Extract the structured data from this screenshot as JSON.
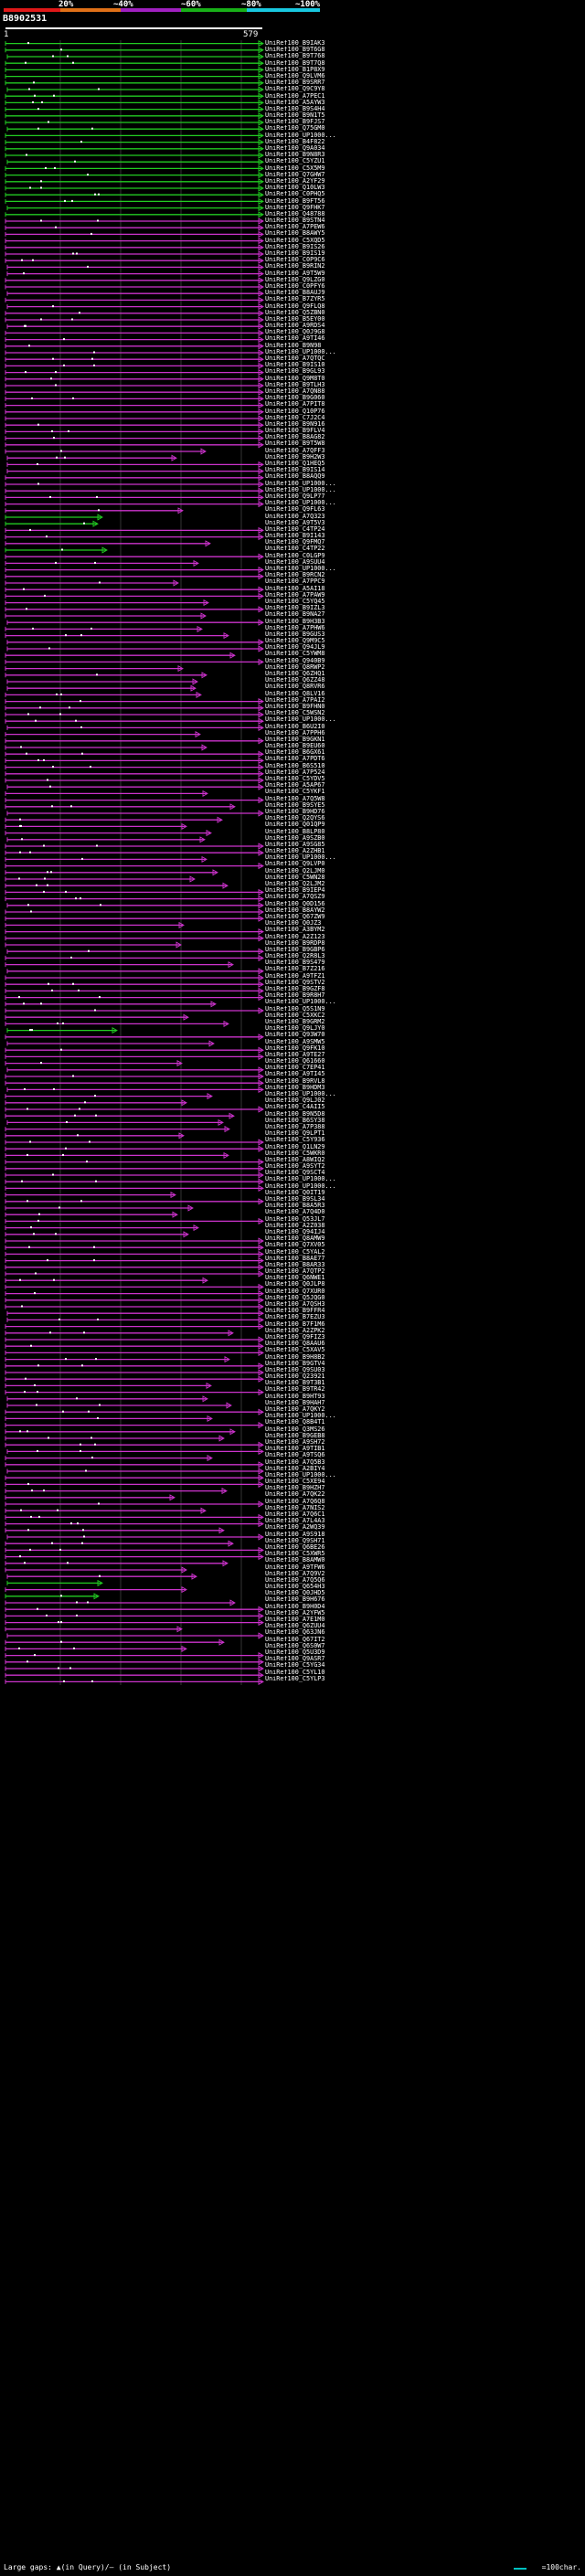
{
  "legend": {
    "labels": [
      "20%",
      "~40%",
      "~60%",
      "~80%",
      "~100%"
    ],
    "colors": [
      "#e01818",
      "#e07018",
      "#a020c0",
      "#18b018",
      "#18c8e0"
    ]
  },
  "query_id": "B8902531",
  "ruler": {
    "start": "1",
    "end": "579"
  },
  "colors": {
    "green_hit": "#22cc22",
    "magenta_hit": "#cc33cc",
    "dot": "#ffffff",
    "gap_marker": "#808080"
  },
  "footer": {
    "large_gaps": "Large gaps: ▲(in Query)/– (in Subject)",
    "scale": "=100char."
  },
  "hits": [
    "UniRef100_B9IAK3",
    "UniRef100_B9T6G8",
    "UniRef100_B9T768",
    "UniRef100_B9T7Q8",
    "UniRef100_B1P8X9",
    "UniRef100_Q9LVM6",
    "UniRef100_B9SRR7",
    "UniRef100_Q9C9Y8",
    "UniRef100_A7PEC1",
    "UniRef100_A5AYW3",
    "UniRef100_B9S4H4",
    "UniRef100_B9N1T5",
    "UniRef100_B9FJS7",
    "UniRef100_Q75GM0",
    "UniRef100_UP1000...",
    "UniRef100_B4F822",
    "UniRef100_Q9A034",
    "UniRef100_B9N8R3",
    "UniRef100_C5YZU1",
    "UniRef100_C5X5M9",
    "UniRef100_Q7GHW7",
    "UniRef100_A2YF29",
    "UniRef100_Q10LW3",
    "UniRef100_C0PHQ5",
    "UniRef100_B9FT56",
    "UniRef100_Q9FHK7",
    "UniRef100_Q48788",
    "UniRef100_B9STN4",
    "UniRef100_A7PEW6",
    "UniRef100_B8AWY5",
    "UniRef100_C5XQD5",
    "UniRef100_B9IS26",
    "UniRef100_B9IS19",
    "UniRef100_C0P9C6",
    "UniRef100_B9RIN2",
    "UniRef100_A9T5W9",
    "UniRef100_Q9LZG0",
    "UniRef100_C0PFY6",
    "UniRef100_B8AUJ9",
    "UniRef100_B7ZYR5",
    "UniRef100_Q9FLQ8",
    "UniRef100_Q5ZBN0",
    "UniRef100_B5EY00",
    "UniRef100_A9RDS4",
    "UniRef100_Q0J9G8",
    "UniRef100_A9TI46",
    "UniRef100_B9N98",
    "UniRef100_UP1000...",
    "UniRef100_A7QTQC",
    "UniRef100_B9IS10",
    "UniRef100_B9GL93",
    "UniRef100_Q9M8T0",
    "UniRef100_B9TLH3",
    "UniRef100_A7QN88",
    "UniRef100_B9G060",
    "UniRef100_A7PIT8",
    "UniRef100_Q10P76",
    "UniRef100_C7J2C4",
    "UniRef100_B9N916",
    "UniRef100_B9FLV4",
    "UniRef100_B8AG82",
    "UniRef100_B9T5W8",
    "UniRef100_A7QFF3",
    "UniRef100_B9H2W3",
    "UniRef100_Q1HEQ5",
    "UniRef100_B9IS14",
    "UniRef100_B8AQQ9",
    "UniRef100_UP1000...",
    "UniRef100_UP1000...",
    "UniRef100_Q9LP77",
    "UniRef100_UP1000...",
    "UniRef100_Q9FL63",
    "UniRef100_A7Q323",
    "UniRef100_A9T5V3",
    "UniRef100_C4TP24",
    "UniRef100_B9I143",
    "UniRef100_Q9FMQ7",
    "UniRef100_C4TP22",
    "UniRef100_C0LGP9",
    "UniRef100_A9SUU4",
    "UniRef100_UP1000...",
    "UniRef100_B9RCN2",
    "UniRef100_A7PPC9",
    "UniRef100_A5AI18",
    "UniRef100_A7PAW9",
    "UniRef100_C5YQ45",
    "UniRef100_B9IZL3",
    "UniRef100_B9NA27",
    "UniRef100_B9H3B3",
    "UniRef100_A7PHW6",
    "UniRef100_B9GUS3",
    "UniRef100_Q9M9C5",
    "UniRef100_Q94JL9",
    "UniRef100_C5YWM8",
    "UniRef100_Q940B9",
    "UniRef100_Q8RWP2",
    "UniRef100_Q6ZHQ1",
    "UniRef100_Q6ZZ48",
    "UniRef100_Q8RVR6",
    "UniRef100_Q8LV16",
    "UniRef100_A7PAI2",
    "UniRef100_B9FHN0",
    "UniRef100_C5WSN2",
    "UniRef100_UP1000...",
    "UniRef100_B6U2I0",
    "UniRef100_A7PPH6",
    "UniRef100_B9GKN1",
    "UniRef100_B9EU60",
    "UniRef100_B6GX61",
    "UniRef100_A7PDT6",
    "UniRef100_B6S510",
    "UniRef100_A7P524",
    "UniRef100_C5YDV5",
    "UniRef100_A5AP67",
    "UniRef100_C5YKF1",
    "UniRef100_A7Q5W8",
    "UniRef100_B9SYE5",
    "UniRef100_B9HD76",
    "UniRef100_Q2QYS6",
    "UniRef100_Q01QP9",
    "UniRef100_B8LP80",
    "UniRef100_A9SZB0",
    "UniRef100_A9SG85",
    "UniRef100_A2ZHB1",
    "UniRef100_UP1000...",
    "UniRef100_Q9LVP0",
    "UniRef100_Q2LJM0",
    "UniRef100_C5WN28",
    "UniRef100_Q2LJM2",
    "UniRef100_B9IEP4",
    "UniRef100_A7QSZ9",
    "UniRef100_Q0D156",
    "UniRef100_B8AYW2",
    "UniRef100_Q67ZW9",
    "UniRef100_Q0JZ3",
    "UniRef100_A3BYM2",
    "UniRef100_A2Z123",
    "UniRef100_B9RDP8",
    "UniRef100_B9GBP6",
    "UniRef100_Q2R8L3",
    "UniRef100_B9S479",
    "UniRef100_B7Z216",
    "UniRef100_A9TFZ1",
    "UniRef100_Q9STV2",
    "UniRef100_B9GZF8",
    "UniRef100_B9R8H7",
    "UniRef100_UP1000...",
    "UniRef100_Q5S1N9",
    "UniRef100_C5XKC2",
    "UniRef100_B9GRM2",
    "UniRef100_Q9LJY0",
    "UniRef100_Q93W70",
    "UniRef100_A9SMW5",
    "UniRef100_Q9FK10",
    "UniRef100_A9TE27",
    "UniRef100_Q61660",
    "UniRef100_C7EP41",
    "UniRef100_A9TI45",
    "UniRef100_B9RVL8",
    "UniRef100_B9HDM3",
    "UniRef100_UP1000...",
    "UniRef100_Q9LJ02",
    "UniRef100_C4AII5",
    "UniRef100_B9N5D8",
    "UniRef100_B6SY38",
    "UniRef100_A7P388",
    "UniRef100_Q9LPT1",
    "UniRef100_C5Y936",
    "UniRef100_Q1LN29",
    "UniRef100_C5WKR0",
    "UniRef100_A8WIQ2",
    "UniRef100_A9SYT2",
    "UniRef100_Q9SCT4",
    "UniRef100_UP1000...",
    "UniRef100_UP1000...",
    "UniRef100_Q0IT19",
    "UniRef100_B9SL34",
    "UniRef100_B8A5R3",
    "UniRef100_A7Q4D0",
    "UniRef100_Q53JL7",
    "UniRef100_A2Z038",
    "UniRef100_Q94IJ4",
    "UniRef100_Q8AMW9",
    "UniRef100_Q7XV05",
    "UniRef100_C5YAL2",
    "UniRef100_B8AE77",
    "UniRef100_B8AR33",
    "UniRef100_A7QTP2",
    "UniRef100_Q6NWE1",
    "UniRef100_Q0JLP8",
    "UniRef100_Q7XUR0",
    "UniRef100_Q5JQG0",
    "UniRef100_A7QSH3",
    "UniRef100_B9FFR4",
    "UniRef100_B7EZU3",
    "UniRef100_B7F1M6",
    "UniRef100_A2ZPK2",
    "UniRef100_Q9FIZ3",
    "UniRef100_Q8AAU6",
    "UniRef100_C5XAV5",
    "UniRef100_B9H8B2",
    "UniRef100_B9GTV4",
    "UniRef100_Q9SU03",
    "UniRef100_Q23921",
    "UniRef100_B9T3B1",
    "UniRef100_B9TR42",
    "UniRef100_B9HT93",
    "UniRef100_B9HAH7",
    "UniRef100_A7QKY2",
    "UniRef100_UP1000...",
    "UniRef100_Q8B4T1",
    "UniRef100_Q3MS26",
    "UniRef100_B9GEB8",
    "UniRef100_A9SH72",
    "UniRef100_A9TIB1",
    "UniRef100_A9TSQ6",
    "UniRef100_A7Q5B3",
    "UniRef100_A2BIY4",
    "UniRef100_UP1000...",
    "UniRef100_C5XE94",
    "UniRef100_B9HZH7",
    "UniRef100_A7QK22",
    "UniRef100_A7Q6Q8",
    "UniRef100_A7NIS2",
    "UniRef100_A7Q6C1",
    "UniRef100_A7L4A3",
    "UniRef100_A2WQ39",
    "UniRef100_A9S918",
    "UniRef100_Q9SH71",
    "UniRef100_Q6BE26",
    "UniRef100_C5XWR5",
    "UniRef100_B8AMW0",
    "UniRef100_A9TFW6",
    "UniRef100_A7Q9V2",
    "UniRef100_A7Q5Q6",
    "UniRef100_Q654H3",
    "UniRef100_Q0JHD5",
    "UniRef100_B9H676",
    "UniRef100_B9H0D4",
    "UniRef100_A2YFW5",
    "UniRef100_A7E1M0",
    "UniRef100_Q6ZUU4",
    "UniRef100_Q63JN6",
    "UniRef100_Q67IT2",
    "UniRef100_Q6S0W7",
    "UniRef100_Q5U3D9",
    "UniRef100_Q9ASR7",
    "UniRef100_C5YG34",
    "UniRef100_C5YL10",
    "UniRef100_C5YLP3"
  ]
}
